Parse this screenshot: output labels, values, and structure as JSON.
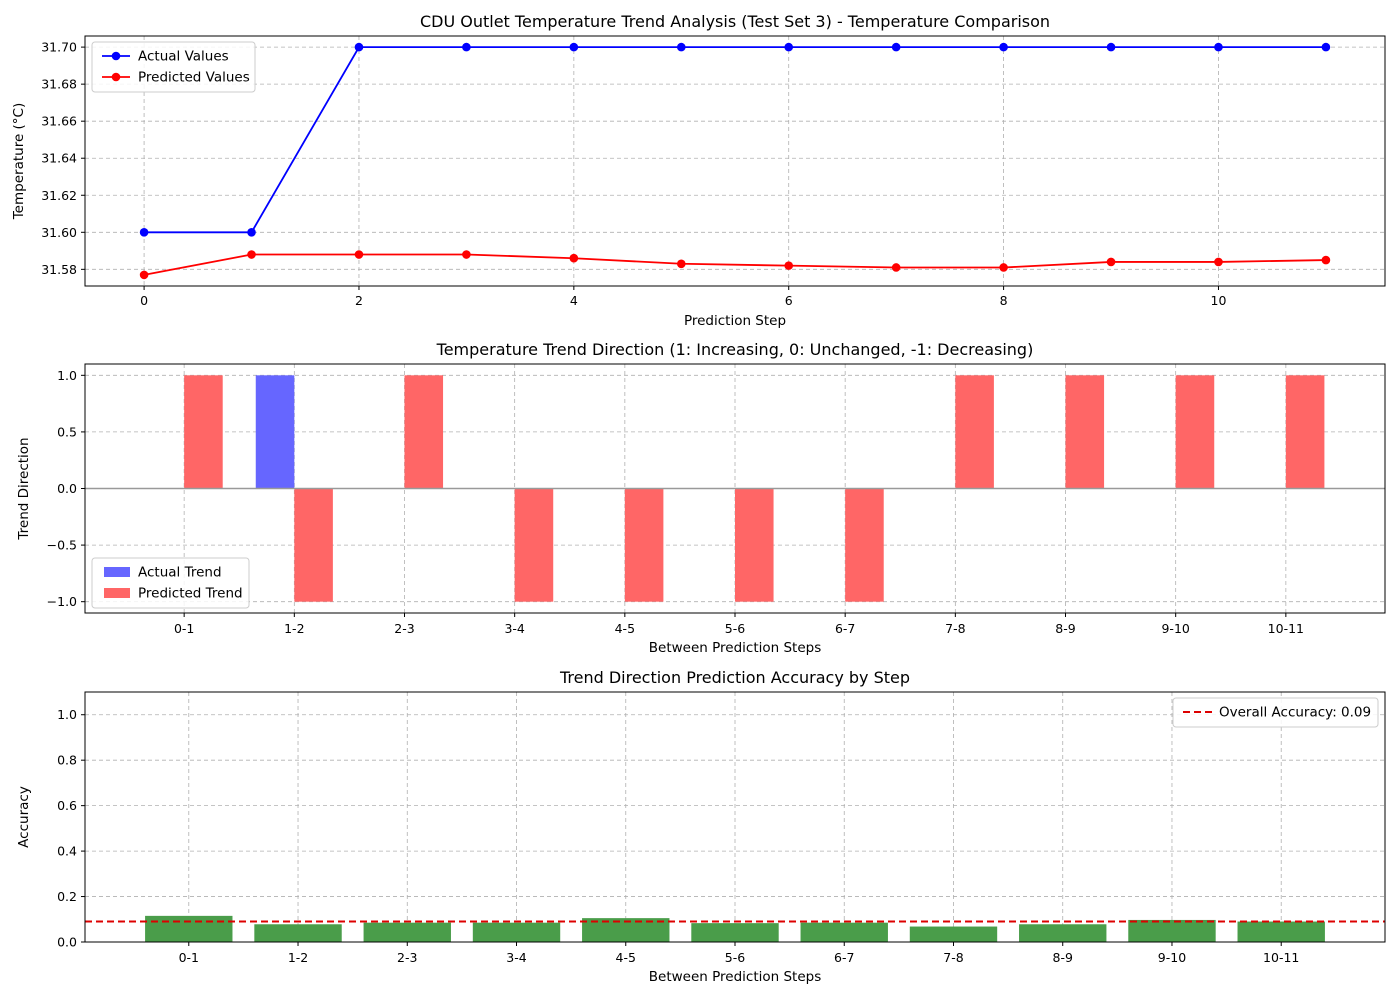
{
  "chart_data": [
    {
      "type": "line",
      "title": "CDU Outlet Temperature Trend Analysis (Test Set 3) - Temperature Comparison",
      "xlabel": "Prediction Step",
      "ylabel": "Temperature (°C)",
      "x": [
        0,
        1,
        2,
        3,
        4,
        5,
        6,
        7,
        8,
        9,
        10,
        11
      ],
      "xlim": [
        -0.55,
        11.55
      ],
      "ylim": [
        31.571,
        31.706
      ],
      "xticks": [
        0,
        2,
        4,
        6,
        8,
        10
      ],
      "yticks": [
        31.58,
        31.6,
        31.62,
        31.64,
        31.66,
        31.68,
        31.7
      ],
      "ytick_labels": [
        "31.58",
        "31.60",
        "31.62",
        "31.64",
        "31.66",
        "31.68",
        "31.70"
      ],
      "grid": true,
      "legend_position": "top-left",
      "series": [
        {
          "name": "Actual Values",
          "color": "#0000ff",
          "values": [
            31.6,
            31.6,
            31.7,
            31.7,
            31.7,
            31.7,
            31.7,
            31.7,
            31.7,
            31.7,
            31.7,
            31.7
          ]
        },
        {
          "name": "Predicted Values",
          "color": "#ff0000",
          "values": [
            31.577,
            31.588,
            31.588,
            31.588,
            31.586,
            31.583,
            31.582,
            31.581,
            31.581,
            31.584,
            31.584,
            31.585
          ]
        }
      ]
    },
    {
      "type": "bar",
      "title": "Temperature Trend Direction (1: Increasing, 0: Unchanged, -1: Decreasing)",
      "xlabel": "Between Prediction Steps",
      "ylabel": "Trend Direction",
      "categories": [
        "0-1",
        "1-2",
        "2-3",
        "3-4",
        "4-5",
        "5-6",
        "6-7",
        "7-8",
        "8-9",
        "9-10",
        "10-11"
      ],
      "ylim": [
        -1.1,
        1.1
      ],
      "yticks": [
        -1.0,
        -0.5,
        0.0,
        0.5,
        1.0
      ],
      "ytick_labels": [
        "−1.0",
        "−0.5",
        "0.0",
        "0.5",
        "1.0"
      ],
      "grid": true,
      "legend_position": "bottom-left",
      "series": [
        {
          "name": "Actual Trend",
          "color": "#6666ff",
          "values": [
            0,
            1,
            0,
            0,
            0,
            0,
            0,
            0,
            0,
            0,
            0
          ]
        },
        {
          "name": "Predicted Trend",
          "color": "#ff6666",
          "values": [
            1,
            -1,
            1,
            -1,
            -1,
            -1,
            -1,
            1,
            1,
            1,
            1
          ]
        }
      ]
    },
    {
      "type": "bar",
      "title": "Trend Direction Prediction Accuracy by Step",
      "xlabel": "Between Prediction Steps",
      "ylabel": "Accuracy",
      "categories": [
        "0-1",
        "1-2",
        "2-3",
        "3-4",
        "4-5",
        "5-6",
        "6-7",
        "7-8",
        "8-9",
        "9-10",
        "10-11"
      ],
      "values": [
        0.115,
        0.078,
        0.085,
        0.085,
        0.105,
        0.083,
        0.085,
        0.068,
        0.078,
        0.097,
        0.09
      ],
      "bar_color": "#4a9d4a",
      "ylim": [
        0,
        1.1
      ],
      "yticks": [
        0.0,
        0.2,
        0.4,
        0.6,
        0.8,
        1.0
      ],
      "ytick_labels": [
        "0.0",
        "0.2",
        "0.4",
        "0.6",
        "0.8",
        "1.0"
      ],
      "reference_line": {
        "name": "Overall Accuracy: 0.09",
        "value": 0.09,
        "color": "#dd0000"
      },
      "grid": true,
      "legend_position": "top-right"
    }
  ]
}
